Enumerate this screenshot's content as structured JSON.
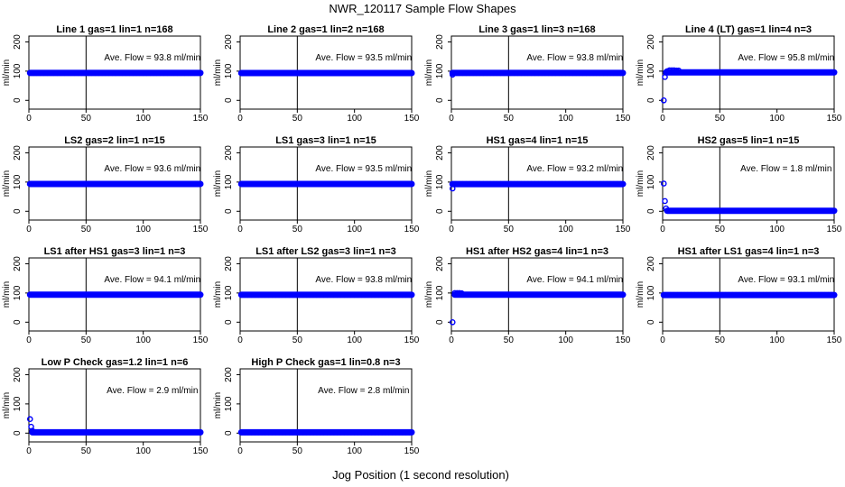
{
  "title": "NWR_120117  Sample Flow Shapes",
  "xlabel": "Jog Position (1 second resolution)",
  "colors": {
    "points": "#0000ff",
    "lines": "#000000"
  },
  "chart_data": [
    {
      "type": "scatter",
      "title": "Line 1 gas=1 lin=1 n=168",
      "annotation": "Ave. Flow = 93.8  ml/min",
      "ylabel": "ml/min",
      "xlim": [
        0,
        150
      ],
      "ylim": [
        -30,
        220
      ],
      "xticks": [
        0,
        50,
        100,
        150
      ],
      "yticks": [
        0,
        100,
        200
      ],
      "hline": 93.8,
      "vline": 50,
      "series": [
        {
          "x": [
            1,
            150
          ],
          "y": [
            93.8,
            93.8
          ]
        }
      ],
      "outliers": []
    },
    {
      "type": "scatter",
      "title": "Line 2 gas=1 lin=2 n=168",
      "annotation": "Ave. Flow = 93.5  ml/min",
      "ylabel": "ml/min",
      "xlim": [
        0,
        150
      ],
      "ylim": [
        -30,
        220
      ],
      "xticks": [
        0,
        50,
        100,
        150
      ],
      "yticks": [
        0,
        100,
        200
      ],
      "hline": 93.5,
      "vline": 50,
      "series": [
        {
          "x": [
            1,
            150
          ],
          "y": [
            93.5,
            93.5
          ]
        }
      ],
      "outliers": []
    },
    {
      "type": "scatter",
      "title": "Line 3 gas=1 lin=3 n=168",
      "annotation": "Ave. Flow = 93.8  ml/min",
      "ylabel": "ml/min",
      "xlim": [
        0,
        150
      ],
      "ylim": [
        -30,
        220
      ],
      "xticks": [
        0,
        50,
        100,
        150
      ],
      "yticks": [
        0,
        100,
        200
      ],
      "hline": 93.8,
      "vline": 50,
      "series": [
        {
          "x": [
            1,
            150
          ],
          "y": [
            93.8,
            93.8
          ]
        }
      ],
      "outliers": [
        {
          "x": 1,
          "y": 88
        }
      ]
    },
    {
      "type": "scatter",
      "title": "Line 4 (LT) gas=1 lin=4 n=3",
      "annotation": "Ave. Flow = 95.8  ml/min",
      "ylabel": "ml/min",
      "xlim": [
        0,
        150
      ],
      "ylim": [
        -30,
        220
      ],
      "xticks": [
        0,
        50,
        100,
        150
      ],
      "yticks": [
        0,
        100,
        200
      ],
      "hline": 95.8,
      "vline": 50,
      "series": [
        {
          "x": [
            3,
            150
          ],
          "y": [
            95.8,
            95.8
          ]
        }
      ],
      "outliers": [
        {
          "x": 1,
          "y": 0
        },
        {
          "x": 2,
          "y": 80
        },
        {
          "x": 3,
          "y": 95
        },
        {
          "x": 4,
          "y": 100
        },
        {
          "x": 6,
          "y": 103
        },
        {
          "x": 8,
          "y": 103
        },
        {
          "x": 10,
          "y": 103
        },
        {
          "x": 12,
          "y": 102
        },
        {
          "x": 14,
          "y": 102
        }
      ]
    },
    {
      "type": "scatter",
      "title": "LS2 gas=2 lin=1 n=15",
      "annotation": "Ave. Flow = 93.6  ml/min",
      "ylabel": "ml/min",
      "xlim": [
        0,
        150
      ],
      "ylim": [
        -30,
        220
      ],
      "xticks": [
        0,
        50,
        100,
        150
      ],
      "yticks": [
        0,
        100,
        200
      ],
      "hline": 93.6,
      "vline": 50,
      "series": [
        {
          "x": [
            1,
            150
          ],
          "y": [
            93.6,
            93.6
          ]
        }
      ],
      "outliers": []
    },
    {
      "type": "scatter",
      "title": "LS1 gas=3 lin=1 n=15",
      "annotation": "Ave. Flow = 93.5  ml/min",
      "ylabel": "ml/min",
      "xlim": [
        0,
        150
      ],
      "ylim": [
        -30,
        220
      ],
      "xticks": [
        0,
        50,
        100,
        150
      ],
      "yticks": [
        0,
        100,
        200
      ],
      "hline": 93.5,
      "vline": 50,
      "series": [
        {
          "x": [
            1,
            150
          ],
          "y": [
            93.5,
            93.5
          ]
        }
      ],
      "outliers": []
    },
    {
      "type": "scatter",
      "title": "HS1 gas=4 lin=1 n=15",
      "annotation": "Ave. Flow = 93.2  ml/min",
      "ylabel": "ml/min",
      "xlim": [
        0,
        150
      ],
      "ylim": [
        -30,
        220
      ],
      "xticks": [
        0,
        50,
        100,
        150
      ],
      "yticks": [
        0,
        100,
        200
      ],
      "hline": 93.2,
      "vline": 50,
      "series": [
        {
          "x": [
            1,
            150
          ],
          "y": [
            93.2,
            93.2
          ]
        }
      ],
      "outliers": [
        {
          "x": 1,
          "y": 78
        }
      ]
    },
    {
      "type": "scatter",
      "title": "HS2 gas=5 lin=1 n=15",
      "annotation": "Ave. Flow = 1.8  ml/min",
      "ylabel": "ml/min",
      "xlim": [
        0,
        150
      ],
      "ylim": [
        -30,
        220
      ],
      "xticks": [
        0,
        50,
        100,
        150
      ],
      "yticks": [
        0,
        100,
        200
      ],
      "hline": 1.8,
      "vline": 50,
      "series": [
        {
          "x": [
            4,
            150
          ],
          "y": [
            1.8,
            1.8
          ]
        }
      ],
      "outliers": [
        {
          "x": 1,
          "y": 95
        },
        {
          "x": 2,
          "y": 35
        },
        {
          "x": 3,
          "y": 10
        }
      ]
    },
    {
      "type": "scatter",
      "title": "LS1 after HS1 gas=3 lin=1 n=3",
      "annotation": "Ave. Flow = 94.1  ml/min",
      "ylabel": "ml/min",
      "xlim": [
        0,
        150
      ],
      "ylim": [
        -30,
        220
      ],
      "xticks": [
        0,
        50,
        100,
        150
      ],
      "yticks": [
        0,
        100,
        200
      ],
      "hline": 94.1,
      "vline": 50,
      "series": [
        {
          "x": [
            1,
            150
          ],
          "y": [
            94.1,
            94.1
          ]
        }
      ],
      "outliers": []
    },
    {
      "type": "scatter",
      "title": "LS1 after LS2 gas=3 lin=1 n=3",
      "annotation": "Ave. Flow = 93.8  ml/min",
      "ylabel": "ml/min",
      "xlim": [
        0,
        150
      ],
      "ylim": [
        -30,
        220
      ],
      "xticks": [
        0,
        50,
        100,
        150
      ],
      "yticks": [
        0,
        100,
        200
      ],
      "hline": 93.8,
      "vline": 50,
      "series": [
        {
          "x": [
            1,
            150
          ],
          "y": [
            93.8,
            93.8
          ]
        }
      ],
      "outliers": []
    },
    {
      "type": "scatter",
      "title": "HS1 after HS2 gas=4 lin=1 n=3",
      "annotation": "Ave. Flow = 94.1  ml/min",
      "ylabel": "ml/min",
      "xlim": [
        0,
        150
      ],
      "ylim": [
        -30,
        220
      ],
      "xticks": [
        0,
        50,
        100,
        150
      ],
      "yticks": [
        0,
        100,
        200
      ],
      "hline": 94.1,
      "vline": 50,
      "series": [
        {
          "x": [
            3,
            150
          ],
          "y": [
            94.1,
            94.1
          ]
        }
      ],
      "outliers": [
        {
          "x": 1,
          "y": 0
        },
        {
          "x": 3,
          "y": 100
        },
        {
          "x": 5,
          "y": 100
        },
        {
          "x": 7,
          "y": 100
        },
        {
          "x": 9,
          "y": 99
        }
      ]
    },
    {
      "type": "scatter",
      "title": "HS1 after LS1 gas=4 lin=1 n=3",
      "annotation": "Ave. Flow = 93.1  ml/min",
      "ylabel": "ml/min",
      "xlim": [
        0,
        150
      ],
      "ylim": [
        -30,
        220
      ],
      "xticks": [
        0,
        50,
        100,
        150
      ],
      "yticks": [
        0,
        100,
        200
      ],
      "hline": 93.1,
      "vline": 50,
      "series": [
        {
          "x": [
            1,
            150
          ],
          "y": [
            93.1,
            93.1
          ]
        }
      ],
      "outliers": []
    },
    {
      "type": "scatter",
      "title": "Low P Check gas=1.2 lin=1 n=6",
      "annotation": "Ave. Flow = 2.9  ml/min",
      "ylabel": "ml/min",
      "xlim": [
        0,
        150
      ],
      "ylim": [
        -30,
        220
      ],
      "xticks": [
        0,
        50,
        100,
        150
      ],
      "yticks": [
        0,
        100,
        200
      ],
      "hline": 2.9,
      "vline": 50,
      "series": [
        {
          "x": [
            3,
            150
          ],
          "y": [
            2.9,
            2.9
          ]
        }
      ],
      "outliers": [
        {
          "x": 1,
          "y": 48
        },
        {
          "x": 2,
          "y": 22
        },
        {
          "x": 3,
          "y": 8
        }
      ]
    },
    {
      "type": "scatter",
      "title": "High P Check gas=1 lin=0.8 n=3",
      "annotation": "Ave. Flow = 2.8  ml/min",
      "ylabel": "ml/min",
      "xlim": [
        0,
        150
      ],
      "ylim": [
        -30,
        220
      ],
      "xticks": [
        0,
        50,
        100,
        150
      ],
      "yticks": [
        0,
        100,
        200
      ],
      "hline": 2.8,
      "vline": 50,
      "series": [
        {
          "x": [
            1,
            150
          ],
          "y": [
            2.8,
            2.8
          ]
        }
      ],
      "outliers": []
    }
  ]
}
